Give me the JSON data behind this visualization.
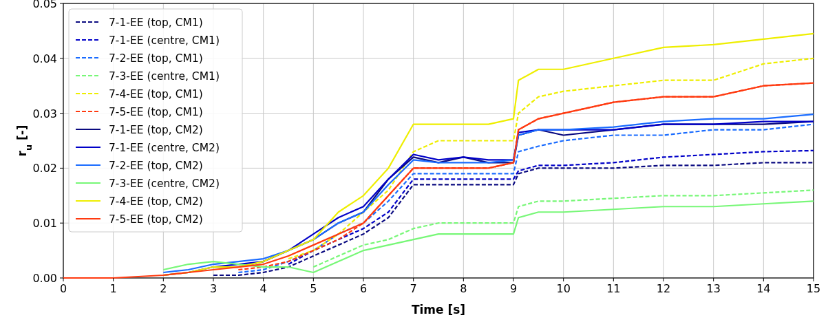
{
  "chart_data": {
    "type": "line",
    "xlabel": "Time [s]",
    "ylabel": "r$_{u}$ [-]",
    "x": [
      0,
      1,
      2,
      2.5,
      3,
      3.5,
      4,
      4.5,
      5,
      5.5,
      6,
      6.5,
      7,
      7.5,
      8,
      8.5,
      9,
      9.1,
      9.5,
      10,
      11,
      12,
      13,
      14,
      15
    ],
    "xlim": [
      0,
      15
    ],
    "xticks": [
      0,
      1,
      2,
      3,
      4,
      5,
      6,
      7,
      8,
      9,
      10,
      11,
      12,
      13,
      14,
      15
    ],
    "ylim": [
      0,
      0.05
    ],
    "yticks": [
      {
        "value": 0,
        "label": "0.00"
      },
      {
        "value": 0.01,
        "label": "0.01"
      },
      {
        "value": 0.02,
        "label": "0.02"
      },
      {
        "value": 0.03,
        "label": "0.03"
      },
      {
        "value": 0.04,
        "label": "0.04"
      },
      {
        "value": 0.05,
        "label": "0.05"
      }
    ],
    "grid": true,
    "legend": "top left",
    "series": [
      {
        "name": "7-1-EE (top, CM1)",
        "color": "#0a0a80",
        "line_style": "dashed",
        "values": [
          null,
          null,
          null,
          null,
          0.0005,
          0.0005,
          0.001,
          0.002,
          0.004,
          0.006,
          0.008,
          0.011,
          0.017,
          0.017,
          0.017,
          0.017,
          0.017,
          0.019,
          0.02,
          0.02,
          0.02,
          0.0205,
          0.0205,
          0.021,
          0.021
        ]
      },
      {
        "name": "7-1-EE (centre, CM1)",
        "color": "#0000c8",
        "line_style": "dashed",
        "values": [
          null,
          null,
          null,
          null,
          null,
          null,
          null,
          0.0025,
          0.005,
          0.007,
          0.009,
          0.012,
          0.018,
          0.018,
          0.018,
          0.018,
          0.018,
          0.0195,
          0.0205,
          0.0205,
          0.021,
          0.022,
          0.0225,
          0.023,
          0.0232
        ]
      },
      {
        "name": "7-2-EE (top, CM1)",
        "color": "#1a6cff",
        "line_style": "dashed",
        "values": [
          null,
          null,
          null,
          null,
          null,
          0.001,
          0.0015,
          0.003,
          0.005,
          0.008,
          0.01,
          0.014,
          0.019,
          0.019,
          0.019,
          0.019,
          0.019,
          0.023,
          0.024,
          0.025,
          0.026,
          0.026,
          0.027,
          0.027,
          0.028
        ]
      },
      {
        "name": "7-3-EE (centre, CM1)",
        "color": "#77f777",
        "line_style": "dashed",
        "values": [
          null,
          null,
          null,
          null,
          null,
          null,
          null,
          null,
          0.002,
          0.004,
          0.006,
          0.007,
          0.009,
          0.01,
          0.01,
          0.01,
          0.01,
          0.013,
          0.014,
          0.014,
          0.0145,
          0.015,
          0.015,
          0.0155,
          0.016
        ]
      },
      {
        "name": "7-4-EE (top, CM1)",
        "color": "#eeee00",
        "line_style": "dashed",
        "values": [
          null,
          null,
          null,
          null,
          null,
          null,
          null,
          0.0035,
          0.005,
          0.008,
          0.012,
          0.016,
          0.023,
          0.025,
          0.025,
          0.025,
          0.025,
          0.03,
          0.033,
          0.034,
          0.035,
          0.036,
          0.036,
          0.039,
          0.04
        ]
      },
      {
        "name": "7-5-EE (top, CM1)",
        "color": "#ff3a10",
        "line_style": "dashed",
        "values": [
          null,
          null,
          null,
          null,
          null,
          0.0015,
          0.002,
          0.003,
          0.005,
          0.007,
          0.01,
          0.015,
          0.02,
          0.02,
          0.02,
          0.02,
          0.021,
          0.027,
          0.029,
          0.03,
          0.032,
          0.033,
          0.033,
          0.035,
          0.0355
        ]
      },
      {
        "name": "7-1-EE (top, CM2)",
        "color": "#0a0a80",
        "line_style": "solid",
        "values": [
          null,
          null,
          null,
          null,
          0.002,
          0.002,
          0.003,
          0.005,
          0.007,
          0.01,
          0.012,
          0.018,
          0.022,
          0.021,
          0.022,
          0.021,
          0.021,
          0.026,
          0.027,
          0.026,
          0.027,
          0.028,
          0.028,
          0.028,
          0.0285
        ]
      },
      {
        "name": "7-1-EE (centre, CM2)",
        "color": "#0000c8",
        "line_style": "solid",
        "values": [
          null,
          null,
          0.0005,
          0.001,
          0.002,
          0.0025,
          0.003,
          0.005,
          0.008,
          0.011,
          0.013,
          0.018,
          0.0225,
          0.0215,
          0.022,
          0.0215,
          0.0215,
          0.0265,
          0.027,
          0.027,
          0.027,
          0.028,
          0.028,
          0.0285,
          0.0285
        ]
      },
      {
        "name": "7-2-EE (top, CM2)",
        "color": "#1a6cff",
        "line_style": "solid",
        "values": [
          null,
          null,
          0.001,
          0.0015,
          0.0025,
          0.003,
          0.0035,
          0.005,
          0.007,
          0.01,
          0.012,
          0.017,
          0.0215,
          0.021,
          0.021,
          0.021,
          0.0215,
          0.026,
          0.027,
          0.027,
          0.0275,
          0.0285,
          0.029,
          0.029,
          0.0298
        ]
      },
      {
        "name": "7-3-EE (centre, CM2)",
        "color": "#77f777",
        "line_style": "solid",
        "values": [
          null,
          null,
          0.0015,
          0.0025,
          0.003,
          0.0025,
          0.002,
          0.002,
          0.001,
          0.003,
          0.005,
          0.006,
          0.007,
          0.008,
          0.008,
          0.008,
          0.008,
          0.011,
          0.012,
          0.012,
          0.0125,
          0.013,
          0.013,
          0.0135,
          0.014
        ]
      },
      {
        "name": "7-4-EE (top, CM2)",
        "color": "#eeee00",
        "line_style": "solid",
        "values": [
          null,
          null,
          0.0005,
          0.001,
          0.002,
          0.002,
          0.003,
          0.005,
          0.007,
          0.012,
          0.015,
          0.02,
          0.028,
          0.028,
          0.028,
          0.028,
          0.029,
          0.036,
          0.038,
          0.038,
          0.04,
          0.042,
          0.0425,
          0.0435,
          0.0445
        ]
      },
      {
        "name": "7-5-EE (top, CM2)",
        "color": "#ff3a10",
        "line_style": "solid",
        "values": [
          0,
          0,
          0.0005,
          0.001,
          0.0015,
          0.002,
          0.0025,
          0.004,
          0.006,
          0.008,
          0.01,
          0.015,
          0.02,
          0.02,
          0.02,
          0.02,
          0.021,
          0.027,
          0.029,
          0.03,
          0.032,
          0.033,
          0.033,
          0.035,
          0.0355
        ]
      }
    ]
  }
}
